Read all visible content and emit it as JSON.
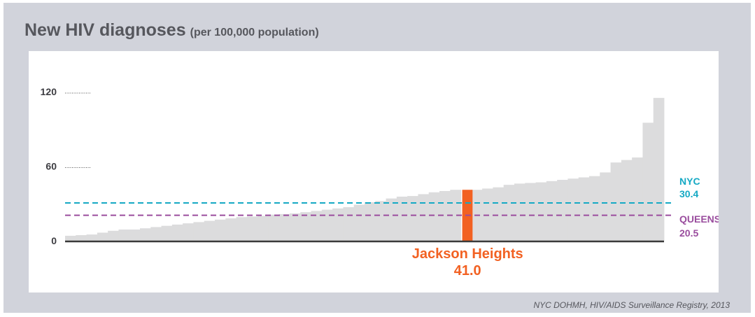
{
  "chart_data": {
    "type": "bar",
    "title": "New HIV diagnoses",
    "subtitle": "(per 100,000 population)",
    "source": "NYC DOHMH, HIV/AIDS Surveillance Registry, 2013",
    "ylim": [
      0,
      130
    ],
    "yticks": [
      {
        "value": 0,
        "label": "0"
      },
      {
        "value": 60,
        "label": "60"
      },
      {
        "value": 120,
        "label": "120"
      }
    ],
    "values": [
      4,
      4.5,
      5,
      6.5,
      8,
      9,
      9,
      10,
      11,
      12,
      13,
      14,
      15,
      16,
      17,
      18,
      19,
      19.5,
      20,
      21,
      21.5,
      22,
      23,
      24,
      25,
      26,
      27,
      29,
      31,
      32,
      34,
      35.5,
      36,
      37.5,
      39,
      40,
      41,
      41,
      41,
      42,
      43,
      45,
      46,
      46.5,
      47,
      48,
      49,
      50,
      51,
      52,
      55,
      63,
      65,
      67,
      95,
      115
    ],
    "highlight": {
      "index": 37,
      "value": 41.0,
      "label": "Jackson Heights",
      "value_label": "41.0",
      "color": "#f26122"
    },
    "reference_lines": [
      {
        "name": "NYC",
        "value": 30.4,
        "value_label": "30.4",
        "color": "#15a9c4"
      },
      {
        "name": "QUEENS",
        "value": 20.5,
        "value_label": "20.5",
        "color": "#9a4d9e"
      }
    ],
    "colors": {
      "bars": "#dcdcdd",
      "axis": "#3a3a3a",
      "panel": "#d1d3db",
      "text": "#56575d"
    }
  }
}
